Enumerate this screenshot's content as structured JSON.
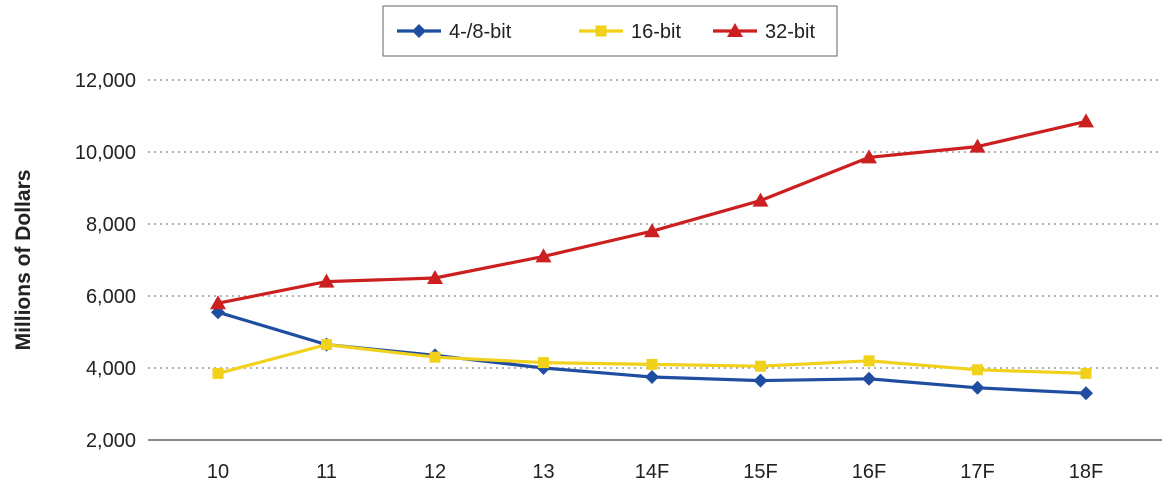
{
  "chart_data": {
    "type": "line",
    "title": "",
    "xlabel": "",
    "ylabel": "Millions of Dollars",
    "categories": [
      "10",
      "11",
      "12",
      "13",
      "14F",
      "15F",
      "16F",
      "17F",
      "18F"
    ],
    "ylim": [
      2000,
      12000
    ],
    "yticks": [
      "2,000",
      "4,000",
      "6,000",
      "8,000",
      "10,000",
      "12,000"
    ],
    "ytick_values": [
      2000,
      4000,
      6000,
      8000,
      10000,
      12000
    ],
    "grid": "horizontal-dotted",
    "legend_position": "top-center",
    "series": [
      {
        "name": "4-/8-bit",
        "color": "#1f4ea1",
        "marker": "diamond",
        "values": [
          5550,
          4650,
          4350,
          4000,
          3750,
          3650,
          3700,
          3450,
          3300
        ]
      },
      {
        "name": "16-bit",
        "color": "#f2d11c",
        "marker": "square",
        "values": [
          3850,
          4650,
          4300,
          4150,
          4100,
          4050,
          4200,
          3950,
          3850
        ]
      },
      {
        "name": "32-bit",
        "color": "#cc2020",
        "marker": "triangle",
        "values": [
          5800,
          6400,
          6500,
          7100,
          7800,
          8650,
          9850,
          10150,
          10850
        ]
      }
    ]
  }
}
